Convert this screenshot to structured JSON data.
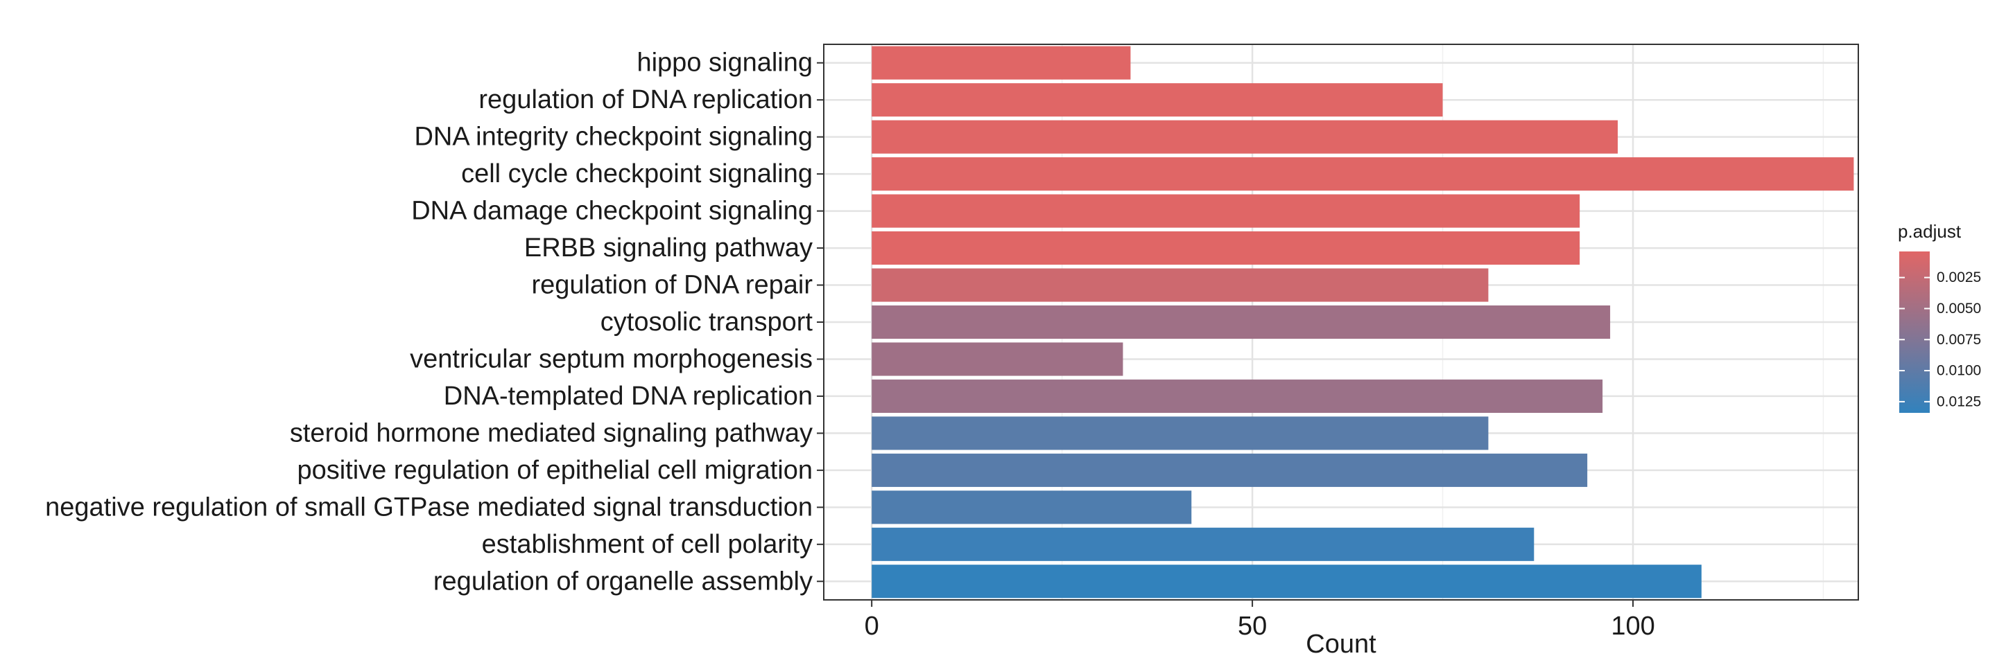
{
  "chart_data": {
    "type": "bar",
    "orientation": "horizontal",
    "xlabel": "Count",
    "ylabel": "",
    "xlim": [
      -6.3,
      129.6
    ],
    "xticks": [
      0,
      50,
      100
    ],
    "grid": true,
    "categories": [
      "hippo signaling",
      "regulation of DNA replication",
      "DNA integrity checkpoint signaling",
      "cell cycle checkpoint signaling",
      "DNA damage checkpoint signaling",
      "ERBB signaling pathway",
      "regulation of DNA repair",
      "cytosolic transport",
      "ventricular septum morphogenesis",
      "DNA-templated DNA replication",
      "steroid hormone mediated signaling pathway",
      "positive regulation of epithelial cell migration",
      "negative regulation of small GTPase mediated signal transduction",
      "establishment of cell polarity",
      "regulation of organelle assembly"
    ],
    "values": [
      34,
      75,
      98,
      129,
      93,
      93,
      81,
      97,
      33,
      96,
      81,
      94,
      42,
      87,
      109
    ],
    "p_adjust": [
      0.0004,
      0.0004,
      0.0004,
      0.0004,
      0.0004,
      0.0004,
      0.0018,
      0.0052,
      0.0052,
      0.0055,
      0.0104,
      0.0105,
      0.0112,
      0.0126,
      0.0133
    ],
    "legend": {
      "title": "p.adjust",
      "position": "right",
      "ticks": [
        "0.0025",
        "0.0050",
        "0.0075",
        "0.0100",
        "0.0125"
      ],
      "tick_values": [
        0.0025,
        0.005,
        0.0075,
        0.01,
        0.0125
      ],
      "range": [
        0.0004,
        0.0134
      ],
      "color_low": "#e06666",
      "color_high": "#3182bd"
    }
  }
}
